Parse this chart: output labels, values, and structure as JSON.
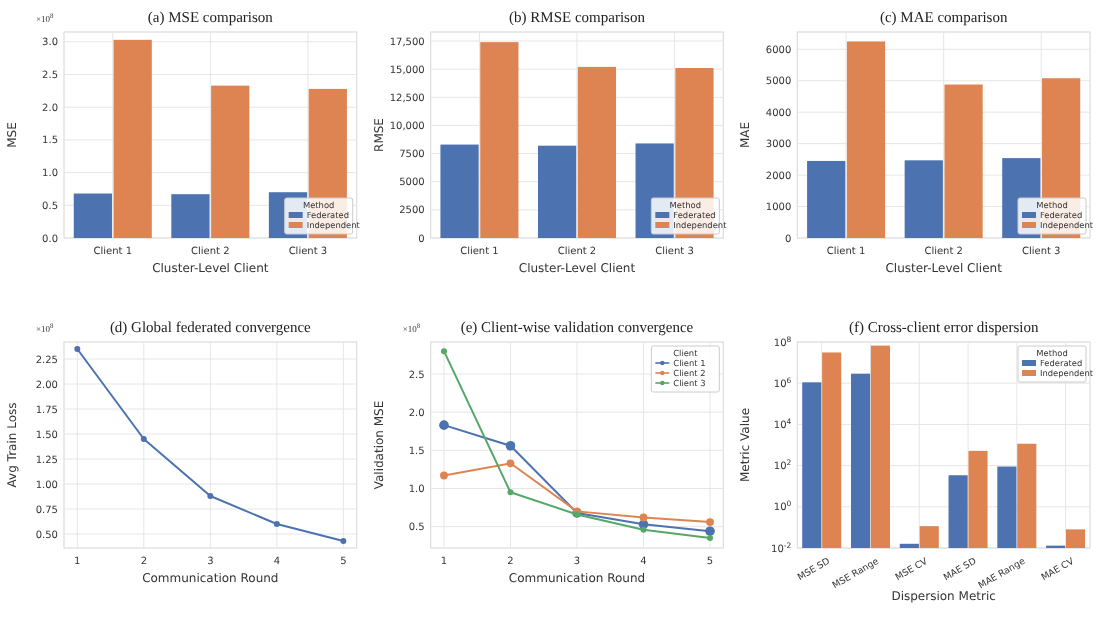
{
  "chart_data": [
    {
      "type": "bar",
      "title": "(a) MSE comparison",
      "xlabel": "Cluster-Level Client",
      "ylabel": "MSE",
      "categories": [
        "Client 1",
        "Client 2",
        "Client 3"
      ],
      "legend_title": "Method",
      "legend": "bottom right",
      "grid": true,
      "annotations": [
        "×10$^{8}$"
      ],
      "series": [
        {
          "name": "Federated",
          "color": "#4c72b0",
          "values": [
            0.68,
            0.67,
            0.7
          ]
        },
        {
          "name": "Independent",
          "color": "#dd8452",
          "values": [
            3.03,
            2.33,
            2.28
          ]
        }
      ],
      "ylim": [
        0,
        3.15
      ],
      "yticks": [
        {
          "value": 0,
          "label": "0.0"
        },
        {
          "value": 0.5,
          "label": "0.5"
        },
        {
          "value": 1,
          "label": "1.0"
        },
        {
          "value": 1.5,
          "label": "1.5"
        },
        {
          "value": 2,
          "label": "2.0"
        },
        {
          "value": 2.5,
          "label": "2.5"
        },
        {
          "value": 3,
          "label": "3.0"
        }
      ]
    },
    {
      "type": "bar",
      "title": "(b) RMSE comparison",
      "xlabel": "Cluster-Level Client",
      "ylabel": "RMSE",
      "categories": [
        "Client 1",
        "Client 2",
        "Client 3"
      ],
      "legend_title": "Method",
      "legend": "bottom right",
      "grid": true,
      "series": [
        {
          "name": "Federated",
          "color": "#4c72b0",
          "values": [
            8300,
            8200,
            8400
          ]
        },
        {
          "name": "Independent",
          "color": "#dd8452",
          "values": [
            17400,
            15200,
            15100
          ]
        }
      ],
      "ylim": [
        0,
        18300
      ],
      "yticks": [
        0,
        2500,
        5000,
        7500,
        {
          "value": 10000,
          "label": "10,000"
        },
        {
          "value": 12500,
          "label": "12,500"
        },
        {
          "value": 15000,
          "label": "15,000"
        },
        {
          "value": 17500,
          "label": "17,500"
        }
      ]
    },
    {
      "type": "bar",
      "title": "(c) MAE comparison",
      "xlabel": "Cluster-Level Client",
      "ylabel": "MAE",
      "categories": [
        "Client 1",
        "Client 2",
        "Client 3"
      ],
      "legend_title": "Method",
      "legend": "bottom right",
      "grid": true,
      "series": [
        {
          "name": "Federated",
          "color": "#4c72b0",
          "values": [
            2450,
            2470,
            2540
          ]
        },
        {
          "name": "Independent",
          "color": "#dd8452",
          "values": [
            6250,
            4880,
            5080
          ]
        }
      ],
      "ylim": [
        0,
        6550
      ],
      "yticks": [
        0,
        1000,
        2000,
        3000,
        4000,
        5000,
        6000
      ]
    },
    {
      "type": "line",
      "title": "(d) Global federated convergence",
      "xlabel": "Communication Round",
      "ylabel": "Avg Train Loss",
      "x": [
        1,
        2,
        3,
        4,
        5
      ],
      "marker": "circle",
      "grid": true,
      "annotations": [
        "×10$^{8}$"
      ],
      "series": [
        {
          "color": "#4c72b0",
          "values": [
            2.35,
            1.45,
            0.88,
            0.6,
            0.43
          ]
        }
      ],
      "xlim": [
        0.8,
        5.2
      ],
      "xticks": [
        1,
        2,
        3,
        4,
        5
      ],
      "ylim": [
        0.36,
        2.42
      ],
      "yticks": [
        {
          "value": 0.5,
          "label": "0.50"
        },
        {
          "value": 0.75,
          "label": "0.75"
        },
        {
          "value": 1,
          "label": "1.00"
        },
        {
          "value": 1.25,
          "label": "1.25"
        },
        {
          "value": 1.5,
          "label": "1.50"
        },
        {
          "value": 1.75,
          "label": "1.75"
        },
        {
          "value": 2,
          "label": "2.00"
        },
        {
          "value": 2.25,
          "label": "2.25"
        }
      ]
    },
    {
      "type": "line",
      "title": "(e) Client-wise validation convergence",
      "xlabel": "Communication Round",
      "ylabel": "Validation MSE",
      "x": [
        1,
        2,
        3,
        4,
        5
      ],
      "marker": "circle",
      "grid": true,
      "legend": "top right",
      "legend_title": "Client",
      "annotations": [
        "×10$^{8}$"
      ],
      "series": [
        {
          "name": "Client 1",
          "color": "#4c72b0",
          "values": [
            1.83,
            1.56,
            0.68,
            0.53,
            0.44
          ]
        },
        {
          "name": "Client 2",
          "color": "#dd8452",
          "values": [
            1.17,
            1.33,
            0.7,
            0.62,
            0.56
          ]
        },
        {
          "name": "Client 3",
          "color": "#55a868",
          "values": [
            2.8,
            0.95,
            0.66,
            0.46,
            0.35
          ]
        }
      ],
      "xlim": [
        0.8,
        5.2
      ],
      "xticks": [
        1,
        2,
        3,
        4,
        5
      ],
      "ylim": [
        0.22,
        2.92
      ],
      "yticks": [
        0.5,
        {
          "value": 1,
          "label": "1.0"
        },
        1.5,
        {
          "value": 2,
          "label": "2.0"
        },
        2.5
      ]
    },
    {
      "type": "bar",
      "title": "(f) Cross-client error dispersion",
      "xlabel": "Dispersion Metric",
      "ylabel": "Metric Value",
      "categories": [
        "MSE SD",
        "MSE Range",
        "MSE CV",
        "MAE SD",
        "MAE Range",
        "MAE CV"
      ],
      "legend_title": "Method",
      "legend": "top right",
      "grid": true,
      "log": true,
      "series": [
        {
          "name": "Federated",
          "color": "#4c72b0",
          "values": [
            1100000,
            2900000,
            0.016,
            34,
            90,
            0.013
          ]
        },
        {
          "name": "Independent",
          "color": "#dd8452",
          "values": [
            31000000,
            67000000,
            0.115,
            520,
            1150,
            0.08
          ]
        }
      ],
      "ylim": [
        0.01,
        100000000
      ],
      "yticks": [
        {
          "value": 0.01,
          "label": "10$^{-2}$"
        },
        {
          "value": 1,
          "label": "10$^{0}$"
        },
        {
          "value": 100,
          "label": "10$^{2}$"
        },
        {
          "value": 10000,
          "label": "10$^{4}$"
        },
        {
          "value": 1000000,
          "label": "10$^{6}$"
        },
        {
          "value": 100000000,
          "label": "10$^{8}$"
        }
      ]
    }
  ]
}
